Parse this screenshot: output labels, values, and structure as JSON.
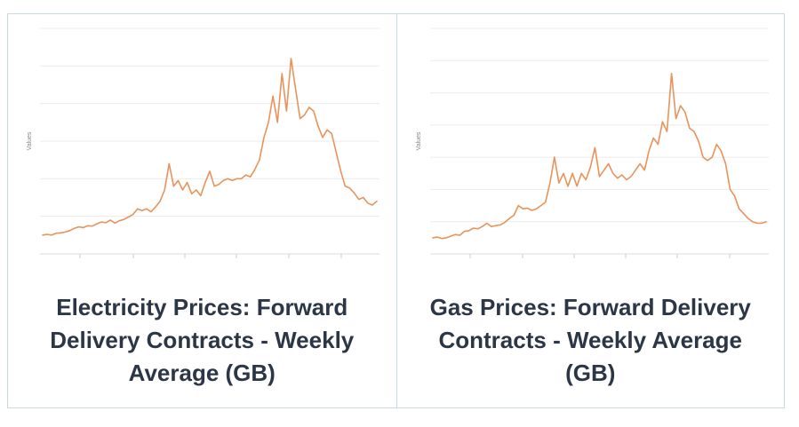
{
  "colors": {
    "line": "#e8935b",
    "grid": "#ebebeb",
    "title": "#2b3746",
    "border": "#c9d8df"
  },
  "cards": [
    {
      "title_lines": [
        "Electricity Prices: Forward",
        "Delivery Contracts - Weekly",
        "Average (GB)"
      ]
    },
    {
      "title_lines": [
        "Gas Prices: Forward Delivery",
        "Contracts - Weekly Average",
        "(GB)"
      ]
    }
  ],
  "chart_data": [
    {
      "type": "line",
      "title": "Electricity Prices: Forward Delivery Contracts - Weekly Average (GB)",
      "xlabel": "",
      "ylabel": "Values",
      "grid": true,
      "y_tick_labels_shown": false,
      "x_tick_labels_shown": false,
      "ylim": [
        0,
        6
      ],
      "series": [
        {
          "values": [
            0.5,
            0.52,
            0.5,
            0.55,
            0.56,
            0.58,
            0.62,
            0.68,
            0.72,
            0.7,
            0.75,
            0.74,
            0.8,
            0.85,
            0.83,
            0.9,
            0.82,
            0.88,
            0.92,
            0.98,
            1.05,
            1.2,
            1.15,
            1.2,
            1.12,
            1.25,
            1.4,
            1.7,
            2.4,
            1.8,
            1.95,
            1.7,
            1.9,
            1.6,
            1.7,
            1.55,
            1.9,
            2.2,
            1.8,
            1.85,
            1.95,
            2.0,
            1.95,
            2.0,
            2.0,
            2.1,
            2.05,
            2.25,
            2.5,
            3.1,
            3.5,
            4.2,
            3.5,
            4.8,
            3.8,
            5.2,
            4.4,
            3.6,
            3.7,
            3.9,
            3.8,
            3.4,
            3.1,
            3.3,
            3.2,
            2.7,
            2.2,
            1.8,
            1.75,
            1.62,
            1.45,
            1.5,
            1.35,
            1.3,
            1.4
          ]
        }
      ]
    },
    {
      "type": "line",
      "title": "Gas Prices: Forward Delivery Contracts - Weekly Average (GB)",
      "xlabel": "",
      "ylabel": "Values",
      "grid": true,
      "y_tick_labels_shown": false,
      "x_tick_labels_shown": false,
      "ylim": [
        0,
        7
      ],
      "series": [
        {
          "values": [
            0.5,
            0.52,
            0.48,
            0.5,
            0.55,
            0.6,
            0.58,
            0.7,
            0.72,
            0.8,
            0.78,
            0.85,
            0.95,
            0.85,
            0.88,
            0.9,
            0.98,
            1.1,
            1.2,
            1.5,
            1.4,
            1.42,
            1.35,
            1.4,
            1.5,
            1.6,
            2.2,
            3.0,
            2.2,
            2.5,
            2.1,
            2.5,
            2.1,
            2.5,
            2.3,
            2.7,
            3.3,
            2.4,
            2.6,
            2.8,
            2.5,
            2.35,
            2.45,
            2.3,
            2.4,
            2.6,
            2.8,
            2.6,
            3.2,
            3.6,
            3.4,
            4.1,
            3.8,
            5.6,
            4.2,
            4.6,
            4.4,
            3.9,
            3.8,
            3.5,
            3.0,
            2.9,
            3.0,
            3.4,
            3.2,
            2.8,
            2.0,
            1.8,
            1.4,
            1.25,
            1.1,
            1.0,
            0.95,
            0.95,
            1.0
          ]
        }
      ]
    }
  ]
}
